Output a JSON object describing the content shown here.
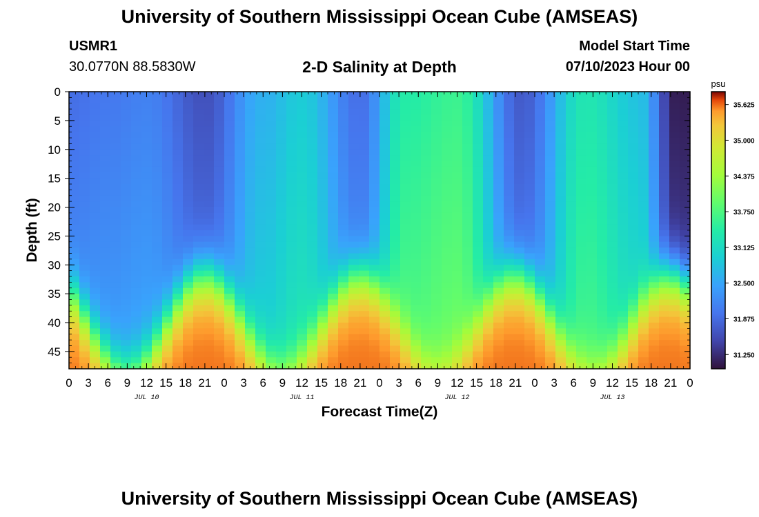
{
  "title": "University of Southern Mississippi Ocean Cube (AMSEAS)",
  "footer_title": "University of Southern Mississippi Ocean Cube (AMSEAS)",
  "station": {
    "id": "USMR1",
    "coords": "30.0770N  88.5830W"
  },
  "plot_title": "2-D Salinity at Depth",
  "model": {
    "label": "Model Start Time",
    "value": "07/10/2023 Hour 00"
  },
  "chart_data": {
    "type": "heatmap",
    "title": "2-D Salinity at Depth",
    "xlabel": "Forecast Time(Z)",
    "ylabel": "Depth (ft)",
    "x_range_hours": [
      0,
      96
    ],
    "x_tick_labels": [
      "0",
      "3",
      "6",
      "9",
      "12",
      "15",
      "18",
      "21",
      "0",
      "3",
      "6",
      "9",
      "12",
      "15",
      "18",
      "21",
      "0",
      "3",
      "6",
      "9",
      "12",
      "15",
      "18",
      "21",
      "0",
      "3",
      "6",
      "9",
      "12",
      "15",
      "18",
      "21",
      "0"
    ],
    "date_labels": [
      "JUL 10",
      "JUL 11",
      "JUL 12",
      "JUL 13"
    ],
    "y_range_ft": [
      0,
      48
    ],
    "y_tick_labels": [
      "0",
      "5",
      "10",
      "15",
      "20",
      "25",
      "30",
      "35",
      "40",
      "45"
    ],
    "colorbar": {
      "unit": "psu",
      "min": 31.0,
      "max": 35.85,
      "tick_labels": [
        "35.625",
        "35.000",
        "34.375",
        "33.750",
        "33.125",
        "32.500",
        "31.875",
        "31.250"
      ]
    },
    "surface_layer_salinity_by_hour": [
      {
        "hour": 0,
        "psu": 31.9
      },
      {
        "hour": 6,
        "psu": 32.0
      },
      {
        "hour": 12,
        "psu": 32.1
      },
      {
        "hour": 21,
        "psu": 31.6
      },
      {
        "hour": 30,
        "psu": 32.6
      },
      {
        "hour": 36,
        "psu": 32.9
      },
      {
        "hour": 45,
        "psu": 31.9
      },
      {
        "hour": 52,
        "psu": 33.4
      },
      {
        "hour": 60,
        "psu": 33.6
      },
      {
        "hour": 70,
        "psu": 31.7
      },
      {
        "hour": 80,
        "psu": 33.3
      },
      {
        "hour": 88,
        "psu": 32.8
      },
      {
        "hour": 94,
        "psu": 31.1
      }
    ],
    "bottom_layer_salinity_psu": 35.6
  }
}
